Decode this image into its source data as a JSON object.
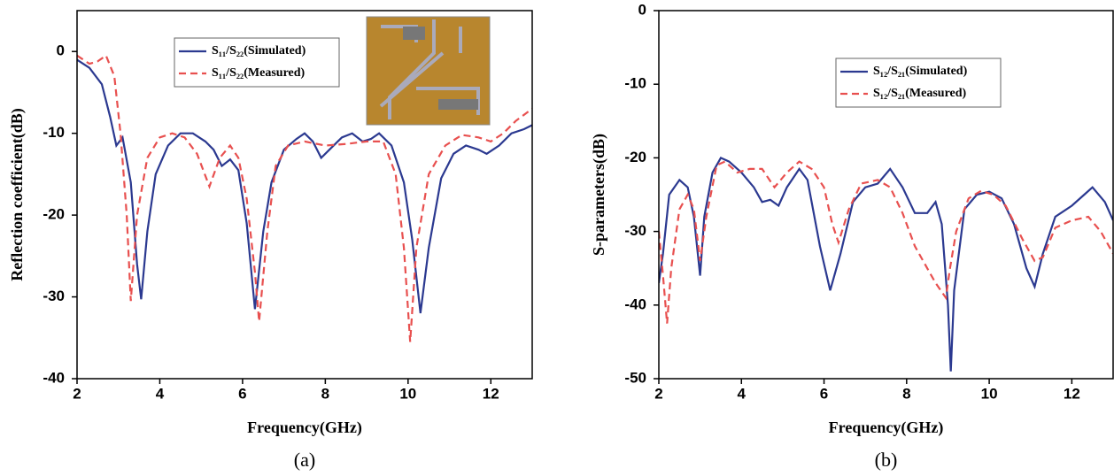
{
  "chart_data": [
    {
      "type": "line",
      "caption": "(a)",
      "xlabel": "Frequency(GHz)",
      "ylabel": "Reflection coefficient(dB)",
      "xlim": [
        2,
        13
      ],
      "ylim": [
        -40,
        5
      ],
      "xticks": [
        2,
        4,
        6,
        8,
        10,
        12
      ],
      "yticks": [
        0,
        -10,
        -20,
        -30,
        -40
      ],
      "legend": "upper center",
      "series": [
        {
          "name": "S₁₁/S₂₂(Simulated)",
          "color": "#2b3990",
          "style": "solid",
          "x": [
            2.0,
            2.3,
            2.6,
            2.8,
            2.95,
            3.1,
            3.3,
            3.45,
            3.55,
            3.7,
            3.9,
            4.2,
            4.5,
            4.8,
            5.1,
            5.3,
            5.5,
            5.7,
            5.9,
            6.1,
            6.3,
            6.5,
            6.7,
            7.0,
            7.3,
            7.5,
            7.7,
            7.9,
            8.1,
            8.4,
            8.65,
            8.9,
            9.1,
            9.3,
            9.6,
            9.9,
            10.1,
            10.3,
            10.5,
            10.8,
            11.1,
            11.4,
            11.7,
            11.9,
            12.2,
            12.5,
            12.8,
            13.0
          ],
          "values": [
            -1,
            -2,
            -4,
            -8,
            -11.5,
            -10.5,
            -16,
            -26,
            -30.3,
            -22,
            -15,
            -11.5,
            -10,
            -10,
            -11,
            -12,
            -14,
            -13.2,
            -14.5,
            -21,
            -31.5,
            -22,
            -16,
            -12,
            -10.7,
            -10,
            -11,
            -13,
            -12,
            -10.5,
            -10,
            -11,
            -10.7,
            -10,
            -11.5,
            -16,
            -23,
            -32,
            -24,
            -15.5,
            -12.5,
            -11.5,
            -12,
            -12.5,
            -11.5,
            -10,
            -9.5,
            -9
          ]
        },
        {
          "name": "S₁₁/S₂₂(Measured)",
          "color": "#e8504f",
          "style": "dashed",
          "x": [
            2.0,
            2.3,
            2.5,
            2.7,
            2.9,
            3.05,
            3.2,
            3.3,
            3.45,
            3.7,
            4.0,
            4.3,
            4.6,
            4.9,
            5.2,
            5.45,
            5.7,
            5.9,
            6.1,
            6.3,
            6.4,
            6.6,
            6.8,
            7.1,
            7.5,
            8.0,
            8.5,
            9.0,
            9.4,
            9.7,
            9.9,
            10.05,
            10.2,
            10.5,
            10.9,
            11.3,
            11.7,
            12.0,
            12.3,
            12.6,
            13.0
          ],
          "values": [
            -0.5,
            -1.5,
            -1.2,
            -0.5,
            -3,
            -10,
            -20,
            -30.5,
            -20,
            -13,
            -10.5,
            -10,
            -10.5,
            -12.5,
            -16.5,
            -13,
            -11.5,
            -13,
            -18,
            -27,
            -33,
            -22,
            -14,
            -11.5,
            -11,
            -11.5,
            -11.3,
            -11,
            -11,
            -15,
            -24,
            -35.5,
            -24,
            -15,
            -11.5,
            -10.2,
            -10.5,
            -11,
            -10,
            -8.5,
            -7
          ]
        }
      ]
    },
    {
      "type": "line",
      "caption": "(b)",
      "xlabel": "Frequency(GHz)",
      "ylabel": "S-parameters(dB)",
      "xlim": [
        2,
        13
      ],
      "ylim": [
        -50,
        0
      ],
      "xticks": [
        2,
        4,
        6,
        8,
        10,
        12
      ],
      "yticks": [
        0,
        -10,
        -20,
        -30,
        -40,
        -50
      ],
      "legend": "upper left",
      "series": [
        {
          "name": "S₁₂/S₂₁(Simulated)",
          "color": "#2b3990",
          "style": "solid",
          "x": [
            2.0,
            2.1,
            2.25,
            2.5,
            2.7,
            2.85,
            3.0,
            3.1,
            3.3,
            3.5,
            3.7,
            4.0,
            4.3,
            4.5,
            4.7,
            4.9,
            5.1,
            5.4,
            5.6,
            5.9,
            6.15,
            6.4,
            6.7,
            7.0,
            7.3,
            7.6,
            7.9,
            8.2,
            8.5,
            8.7,
            8.85,
            9.0,
            9.07,
            9.15,
            9.4,
            9.7,
            10.0,
            10.3,
            10.6,
            10.9,
            11.1,
            11.3,
            11.6,
            12.0,
            12.3,
            12.5,
            12.8,
            13.0
          ],
          "values": [
            -37,
            -33,
            -25,
            -23,
            -24,
            -28,
            -36,
            -28,
            -22,
            -20,
            -20.5,
            -22,
            -24,
            -26,
            -25.7,
            -26.5,
            -24,
            -21.5,
            -23,
            -32,
            -38,
            -33,
            -26,
            -24,
            -23.5,
            -21.5,
            -24,
            -27.5,
            -27.5,
            -26,
            -29,
            -40,
            -49,
            -38,
            -27,
            -25,
            -24.6,
            -25.5,
            -29,
            -35,
            -37.5,
            -33,
            -28,
            -26.5,
            -25,
            -24,
            -26,
            -28.5
          ]
        },
        {
          "name": "S₁₂/S₂₁(Measured)",
          "color": "#e8504f",
          "style": "dashed",
          "x": [
            2.0,
            2.1,
            2.2,
            2.3,
            2.5,
            2.7,
            2.85,
            3.0,
            3.15,
            3.4,
            3.6,
            3.9,
            4.2,
            4.5,
            4.8,
            5.1,
            5.4,
            5.7,
            6.0,
            6.2,
            6.35,
            6.6,
            6.9,
            7.3,
            7.6,
            7.9,
            8.2,
            8.5,
            8.7,
            8.95,
            9.05,
            9.2,
            9.5,
            9.8,
            10.1,
            10.4,
            10.8,
            11.1,
            11.3,
            11.6,
            12.0,
            12.4,
            12.7,
            13.0
          ],
          "values": [
            -30,
            -36,
            -42.5,
            -35,
            -27,
            -25,
            -27,
            -34,
            -28,
            -21,
            -20.5,
            -22,
            -21.5,
            -21.5,
            -24,
            -22,
            -20.5,
            -21.5,
            -24,
            -29,
            -31.5,
            -27,
            -23.5,
            -23,
            -24,
            -27.5,
            -32,
            -35,
            -37,
            -39,
            -35,
            -30,
            -25.5,
            -24.5,
            -25,
            -26.5,
            -31,
            -34,
            -33.5,
            -29.5,
            -28.5,
            -28,
            -30,
            -33
          ]
        }
      ]
    }
  ]
}
